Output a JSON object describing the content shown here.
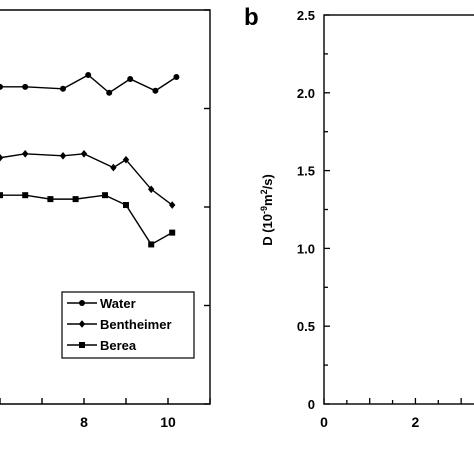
{
  "chart_data": [
    {
      "type": "line",
      "x_ticks": [
        "8",
        "10"
      ],
      "xlim": [
        6,
        11
      ],
      "ylim": [
        0.5,
        2.5
      ],
      "series": [
        {
          "name": "Water",
          "marker": "circle",
          "x": [
            6.0,
            6.6,
            7.5,
            8.1,
            8.6,
            9.1,
            9.7,
            10.2
          ],
          "y": [
            2.11,
            2.11,
            2.1,
            2.17,
            2.08,
            2.15,
            2.09,
            2.16
          ]
        },
        {
          "name": "Bentheimer",
          "marker": "diamond",
          "x": [
            6.0,
            6.6,
            7.5,
            8.0,
            8.7,
            9.0,
            9.6,
            10.1
          ],
          "y": [
            1.75,
            1.77,
            1.76,
            1.77,
            1.7,
            1.74,
            1.59,
            1.51
          ]
        },
        {
          "name": "Berea",
          "marker": "square",
          "x": [
            6.0,
            6.6,
            7.2,
            7.8,
            8.5,
            9.0,
            9.6,
            10.1
          ],
          "y": [
            1.56,
            1.56,
            1.54,
            1.54,
            1.56,
            1.51,
            1.31,
            1.37
          ]
        }
      ],
      "legend": {
        "position": "lower-right",
        "entries": [
          "Water",
          "Bentheimer",
          "Berea"
        ]
      },
      "grid": false
    },
    {
      "type": "line",
      "panel_label": "b",
      "ylabel_main": "D (10",
      "ylabel_exp1": "-9",
      "ylabel_mid": "m",
      "ylabel_exp2": "2",
      "ylabel_end": "/s)",
      "ylim": [
        0,
        2.5
      ],
      "y_ticks": [
        "0",
        "0.5",
        "1.0",
        "1.5",
        "2.0",
        "2.5"
      ],
      "y_tick_values": [
        0,
        0.5,
        1.0,
        1.5,
        2.0,
        2.5
      ],
      "x_ticks": [
        "0",
        "2"
      ],
      "x_tick_values": [
        0,
        2
      ],
      "xlim": [
        0,
        3.5
      ],
      "series": [],
      "grid": false
    }
  ]
}
